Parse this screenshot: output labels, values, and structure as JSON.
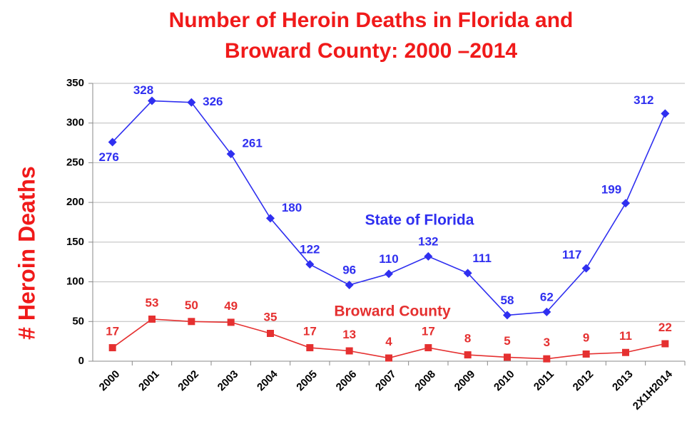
{
  "chart_data": {
    "type": "line",
    "title": [
      "Number of Heroin Deaths in Florida  and",
      "Broward County: 2000 –2014"
    ],
    "y_label": "# Heroin Deaths",
    "categories": [
      "2000",
      "2001",
      "2002",
      "2003",
      "2004",
      "2005",
      "2006",
      "2007",
      "2008",
      "2009",
      "2010",
      "2011",
      "2012",
      "2013",
      "2X1H2014"
    ],
    "series": [
      {
        "name": "State of Florida",
        "color": "#2f2ff0",
        "marker": "diamond",
        "values": [
          276,
          328,
          326,
          261,
          180,
          122,
          96,
          110,
          132,
          111,
          58,
          62,
          117,
          199,
          312
        ]
      },
      {
        "name": "Broward County",
        "color": "#e53030",
        "marker": "square",
        "values": [
          17,
          53,
          50,
          49,
          35,
          17,
          13,
          4,
          17,
          8,
          5,
          3,
          9,
          11,
          22
        ]
      }
    ],
    "ylim": [
      0,
      350
    ],
    "yticks": [
      0,
      50,
      100,
      150,
      200,
      250,
      300,
      350
    ],
    "grid": true
  }
}
